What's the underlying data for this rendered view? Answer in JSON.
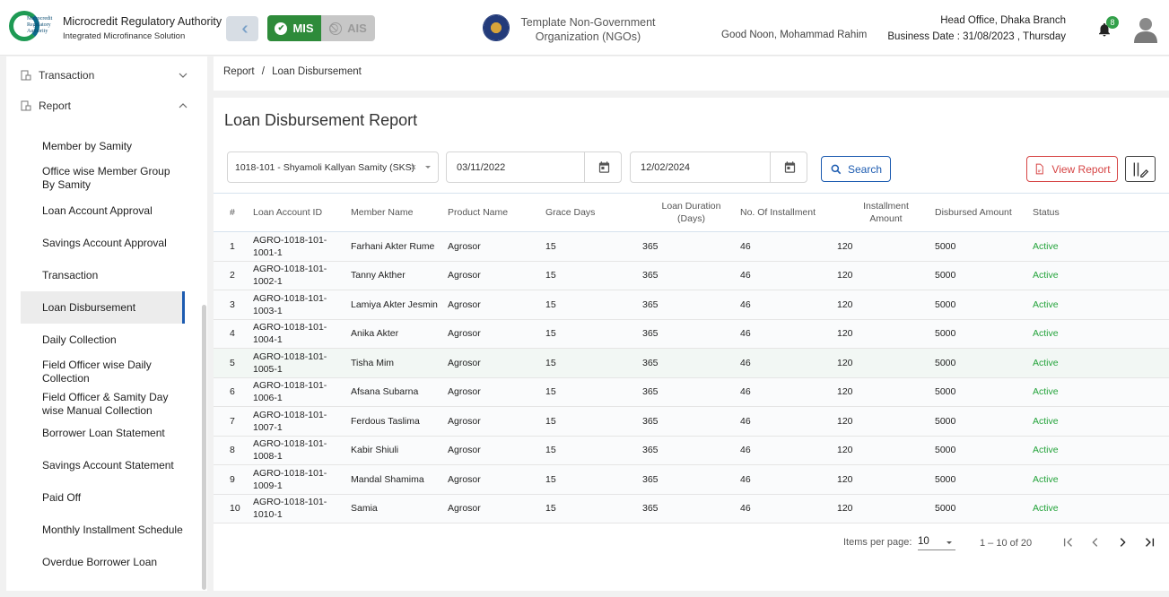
{
  "header": {
    "brand_title": "Microcredit Regulatory Authority",
    "brand_subtitle": "Integrated Microfinance Solution",
    "logo_text": "Microcredit Regulatory Authority",
    "mode_mis": "MIS",
    "mode_ais": "AIS",
    "org_line1": "Template Non-Government",
    "org_line2": "Organization (NGOs)",
    "greeting": "Good Noon, Mohammad Rahim",
    "branch": "Head Office, Dhaka Branch",
    "business_date": "Business Date : 31/08/2023 , Thursday",
    "notification_count": "8"
  },
  "sidebar": {
    "top": [
      {
        "label": "Transaction",
        "expanded": false
      },
      {
        "label": "Report",
        "expanded": true
      }
    ],
    "report_items": [
      {
        "label": "Member by Samity"
      },
      {
        "label": "Office wise Member Group By Samity"
      },
      {
        "label": "Loan Account Approval"
      },
      {
        "label": "Savings Account Approval"
      },
      {
        "label": "Transaction"
      },
      {
        "label": "Loan Disbursement",
        "active": true
      },
      {
        "label": "Daily Collection"
      },
      {
        "label": "Field Officer wise Daily Collection"
      },
      {
        "label": "Field Officer & Samity Day wise Manual Collection"
      },
      {
        "label": "Borrower Loan Statement"
      },
      {
        "label": "Savings Account Statement"
      },
      {
        "label": "Paid Off"
      },
      {
        "label": "Monthly Installment Schedule"
      },
      {
        "label": "Overdue Borrower Loan"
      }
    ]
  },
  "breadcrumb": {
    "parent": "Report",
    "separator": "/",
    "current": "Loan Disbursement"
  },
  "main": {
    "title": "Loan Disbursement Report",
    "samity_value": "1018-101 - Shyamoli Kallyan Samity (SKS)",
    "date_from": "03/11/2022",
    "date_to": "12/02/2024",
    "search_label": "Search",
    "view_report_label": "View Report"
  },
  "table": {
    "headers": {
      "num": "#",
      "account": "Loan Account ID",
      "member": "Member Name",
      "product": "Product Name",
      "grace": "Grace Days",
      "duration_line1": "Loan Duration",
      "duration_line2": "(Days)",
      "installments": "No. Of Installment",
      "amount_line1": "Installment",
      "amount_line2": "Amount",
      "disbursed": "Disbursed Amount",
      "status": "Status"
    },
    "rows": [
      {
        "num": "1",
        "acc1": "AGRO-1018-101-",
        "acc2": "1001-1",
        "member": "Farhani Akter Rume",
        "product": "Agrosor",
        "grace": "15",
        "duration": "365",
        "installments": "46",
        "amount": "120",
        "disbursed": "5000",
        "status": "Active"
      },
      {
        "num": "2",
        "acc1": "AGRO-1018-101-",
        "acc2": "1002-1",
        "member": "Tanny Akther",
        "product": "Agrosor",
        "grace": "15",
        "duration": "365",
        "installments": "46",
        "amount": "120",
        "disbursed": "5000",
        "status": "Active"
      },
      {
        "num": "3",
        "acc1": "AGRO-1018-101-",
        "acc2": "1003-1",
        "member": "Lamiya Akter Jesmin",
        "product": "Agrosor",
        "grace": "15",
        "duration": "365",
        "installments": "46",
        "amount": "120",
        "disbursed": "5000",
        "status": "Active"
      },
      {
        "num": "4",
        "acc1": "AGRO-1018-101-",
        "acc2": "1004-1",
        "member": "Anika Akter",
        "product": "Agrosor",
        "grace": "15",
        "duration": "365",
        "installments": "46",
        "amount": "120",
        "disbursed": "5000",
        "status": "Active"
      },
      {
        "num": "5",
        "acc1": "AGRO-1018-101-",
        "acc2": "1005-1",
        "member": "Tisha Mim",
        "product": "Agrosor",
        "grace": "15",
        "duration": "365",
        "installments": "46",
        "amount": "120",
        "disbursed": "5000",
        "status": "Active"
      },
      {
        "num": "6",
        "acc1": "AGRO-1018-101-",
        "acc2": "1006-1",
        "member": "Afsana Subarna",
        "product": "Agrosor",
        "grace": "15",
        "duration": "365",
        "installments": "46",
        "amount": "120",
        "disbursed": "5000",
        "status": "Active"
      },
      {
        "num": "7",
        "acc1": "AGRO-1018-101-",
        "acc2": "1007-1",
        "member": "Ferdous Taslima",
        "product": "Agrosor",
        "grace": "15",
        "duration": "365",
        "installments": "46",
        "amount": "120",
        "disbursed": "5000",
        "status": "Active"
      },
      {
        "num": "8",
        "acc1": "AGRO-1018-101-",
        "acc2": "1008-1",
        "member": "Kabir Shiuli",
        "product": "Agrosor",
        "grace": "15",
        "duration": "365",
        "installments": "46",
        "amount": "120",
        "disbursed": "5000",
        "status": "Active"
      },
      {
        "num": "9",
        "acc1": "AGRO-1018-101-",
        "acc2": "1009-1",
        "member": "Mandal Shamima",
        "product": "Agrosor",
        "grace": "15",
        "duration": "365",
        "installments": "46",
        "amount": "120",
        "disbursed": "5000",
        "status": "Active"
      },
      {
        "num": "10",
        "acc1": "AGRO-1018-101-",
        "acc2": "1010-1",
        "member": "Samia",
        "product": "Agrosor",
        "grace": "15",
        "duration": "365",
        "installments": "46",
        "amount": "120",
        "disbursed": "5000",
        "status": "Active"
      }
    ]
  },
  "paginator": {
    "items_per_page_label": "Items per page:",
    "items_per_page": "10",
    "range": "1 – 10 of 20"
  },
  "colors": {
    "primary": "#1c5bb0",
    "mis_green": "#2e8b3a",
    "status_active": "#23a33a",
    "danger": "#d64545"
  }
}
